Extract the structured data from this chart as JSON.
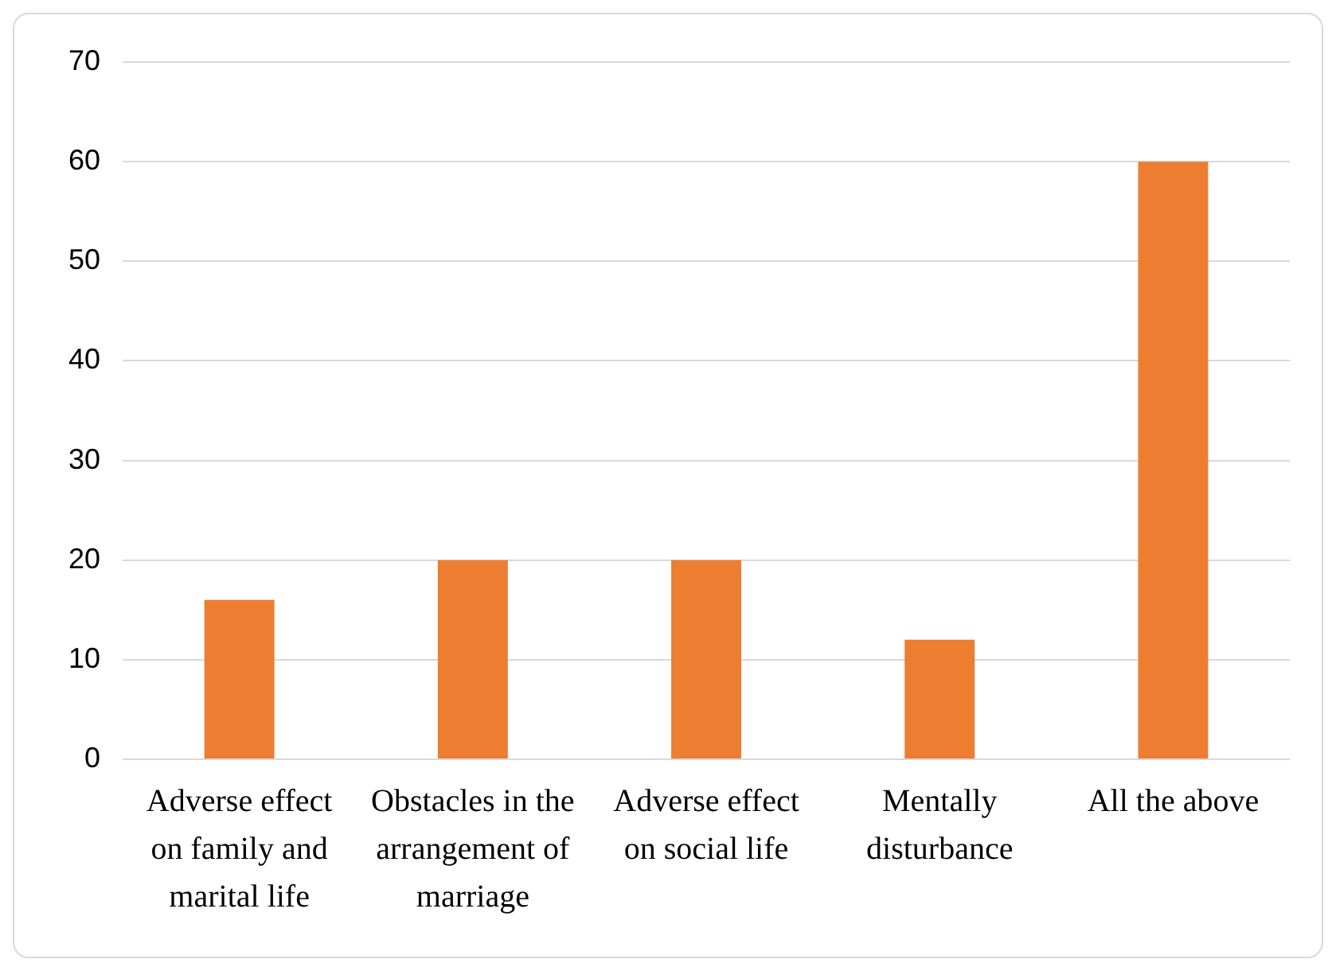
{
  "chart_data": {
    "type": "bar",
    "categories": [
      "Adverse effect on family and marital life",
      "Obstacles in the arrangement of marriage",
      "Adverse effect on social life",
      "Mentally disturbance",
      "All the above"
    ],
    "values": [
      16,
      20,
      20,
      12,
      60
    ],
    "color": "#ed7d31",
    "ylim": [
      0,
      70
    ],
    "yticks": [
      0,
      10,
      20,
      30,
      40,
      50,
      60,
      70
    ],
    "grid": "y",
    "legend": false
  }
}
